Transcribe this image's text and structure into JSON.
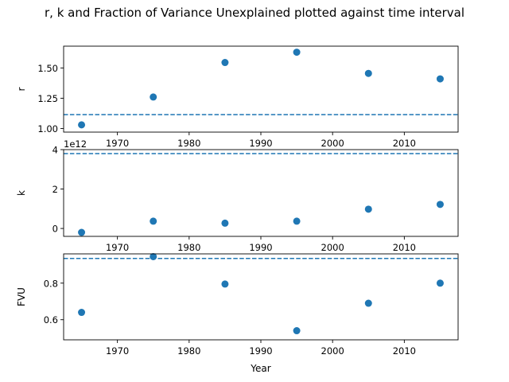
{
  "title": "r, k and Fraction of Variance Unexplained plotted against time interval",
  "colors": {
    "marker": "#1f77b4",
    "reference_line": "#1f77b4",
    "axis": "#000000"
  },
  "chart_data": [
    {
      "type": "scatter",
      "ylabel": "r",
      "xlim": [
        1962.5,
        2017.5
      ],
      "ylim": [
        0.97,
        1.68
      ],
      "yticks": [
        "1.00",
        "1.25",
        "1.50"
      ],
      "ytick_values": [
        1.0,
        1.25,
        1.5
      ],
      "xticks": [
        "1970",
        "1980",
        "1990",
        "2000",
        "2010"
      ],
      "x": [
        1965,
        1975,
        1985,
        1995,
        2005,
        2015
      ],
      "y": [
        1.03,
        1.26,
        1.545,
        1.63,
        1.455,
        1.41
      ],
      "reference_line": 1.115,
      "offset_label": ""
    },
    {
      "type": "scatter",
      "ylabel": "k",
      "xlim": [
        1962.5,
        2017.5
      ],
      "ylim": [
        -400000000000.0,
        4000000000000.0
      ],
      "yticks": [
        "0",
        "2",
        "4"
      ],
      "ytick_values": [
        0,
        2000000000000.0,
        4000000000000.0
      ],
      "xticks": [
        "1970",
        "1980",
        "1990",
        "2000",
        "2010"
      ],
      "x": [
        1965,
        1975,
        1985,
        1995,
        2005,
        2015
      ],
      "y": [
        -200000000000.0,
        370000000000.0,
        270000000000.0,
        370000000000.0,
        980000000000.0,
        1220000000000.0
      ],
      "reference_line": 3800000000000.0,
      "offset_label": "1e12"
    },
    {
      "type": "scatter",
      "ylabel": "FVU",
      "xlabel": "Year",
      "xlim": [
        1962.5,
        2017.5
      ],
      "ylim": [
        0.49,
        0.96
      ],
      "yticks": [
        "0.6",
        "0.8"
      ],
      "ytick_values": [
        0.6,
        0.8
      ],
      "xticks": [
        "1970",
        "1980",
        "1990",
        "2000",
        "2010"
      ],
      "x": [
        1965,
        1975,
        1985,
        1995,
        2005,
        2015
      ],
      "y": [
        0.64,
        0.945,
        0.795,
        0.54,
        0.69,
        0.8
      ],
      "reference_line": 0.935,
      "offset_label": ""
    }
  ]
}
